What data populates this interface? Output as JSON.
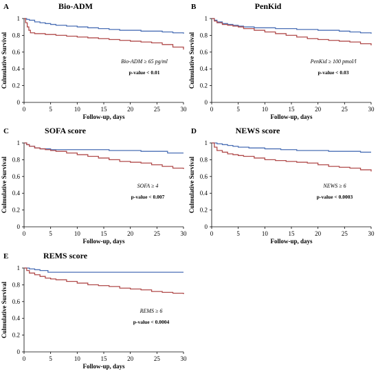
{
  "figure": {
    "panels": [
      {
        "letter": "A",
        "chart_data": {
          "type": "line",
          "title": "Bio-ADM",
          "xlabel": "Follow-up, days",
          "ylabel": "Culmulative Survival",
          "xlim": [
            0,
            30
          ],
          "ylim": [
            0,
            1
          ],
          "xticks": [
            "0",
            "5",
            "10",
            "15",
            "20",
            "25",
            "30"
          ],
          "yticks": [
            "0",
            "0.2",
            "0.4",
            "0.6",
            "0.8",
            "1"
          ],
          "annotation_cutoff": "Bio-ADM ≥ 65 pg/ml",
          "annotation_p": "p-value < 0.01",
          "series": [
            {
              "color": "#4a6fb5",
              "x": [
                0,
                0.5,
                1,
                2,
                3,
                4,
                5,
                6,
                8,
                10,
                12,
                14,
                16,
                18,
                20,
                22,
                24,
                26,
                28,
                30
              ],
              "y": [
                1,
                0.99,
                0.98,
                0.96,
                0.95,
                0.94,
                0.93,
                0.92,
                0.91,
                0.9,
                0.89,
                0.88,
                0.87,
                0.86,
                0.86,
                0.85,
                0.85,
                0.84,
                0.83,
                0.82
              ]
            },
            {
              "color": "#b04a4a",
              "x": [
                0,
                0.3,
                0.6,
                0.9,
                1.2,
                2,
                4,
                6,
                8,
                10,
                12,
                14,
                16,
                18,
                20,
                22,
                24,
                26,
                28,
                30
              ],
              "y": [
                1,
                0.95,
                0.9,
                0.86,
                0.83,
                0.82,
                0.81,
                0.8,
                0.79,
                0.78,
                0.77,
                0.76,
                0.75,
                0.74,
                0.73,
                0.72,
                0.71,
                0.69,
                0.66,
                0.63
              ]
            }
          ]
        }
      },
      {
        "letter": "B",
        "chart_data": {
          "type": "line",
          "title": "PenKid",
          "xlabel": "Follow-up, days",
          "ylabel": "Culmulative Survival",
          "xlim": [
            0,
            30
          ],
          "ylim": [
            0,
            1
          ],
          "xticks": [
            "0",
            "5",
            "10",
            "15",
            "20",
            "25",
            "30"
          ],
          "yticks": [
            "0",
            "0.2",
            "0.4",
            "0.6",
            "0.8",
            "1"
          ],
          "annotation_cutoff": "PenKid ≥ 100 pmol/l",
          "annotation_p": "p-value < 0.03",
          "series": [
            {
              "color": "#4a6fb5",
              "x": [
                0,
                0.5,
                1,
                2,
                3,
                4,
                5,
                6,
                8,
                10,
                12,
                14,
                16,
                18,
                20,
                22,
                24,
                26,
                28,
                30
              ],
              "y": [
                1,
                0.98,
                0.96,
                0.94,
                0.93,
                0.92,
                0.91,
                0.9,
                0.89,
                0.89,
                0.88,
                0.88,
                0.87,
                0.87,
                0.86,
                0.86,
                0.85,
                0.84,
                0.83,
                0.82
              ]
            },
            {
              "color": "#b04a4a",
              "x": [
                0,
                0.5,
                1,
                2,
                3,
                4,
                5,
                6,
                8,
                10,
                12,
                14,
                16,
                18,
                20,
                22,
                24,
                26,
                28,
                30
              ],
              "y": [
                1,
                0.97,
                0.95,
                0.93,
                0.92,
                0.91,
                0.9,
                0.88,
                0.86,
                0.84,
                0.82,
                0.8,
                0.78,
                0.76,
                0.75,
                0.74,
                0.73,
                0.72,
                0.7,
                0.68
              ]
            }
          ]
        }
      },
      {
        "letter": "C",
        "chart_data": {
          "type": "line",
          "title": "SOFA score",
          "xlabel": "Follow-up, days",
          "ylabel": "Culmulative Survival",
          "xlim": [
            0,
            30
          ],
          "ylim": [
            0,
            1
          ],
          "xticks": [
            "0",
            "5",
            "10",
            "15",
            "20",
            "25",
            "30"
          ],
          "yticks": [
            "0",
            "0.2",
            "0.4",
            "0.6",
            "0.8",
            "1"
          ],
          "annotation_cutoff": "SOFA ≥ 4",
          "annotation_p": "p-value < 0.007",
          "series": [
            {
              "color": "#4a6fb5",
              "x": [
                0,
                0.5,
                1,
                2,
                3,
                4,
                5,
                7,
                10,
                13,
                16,
                19,
                22,
                25,
                27,
                30
              ],
              "y": [
                1,
                0.98,
                0.96,
                0.94,
                0.93,
                0.93,
                0.92,
                0.92,
                0.92,
                0.92,
                0.91,
                0.91,
                0.9,
                0.9,
                0.88,
                0.88
              ]
            },
            {
              "color": "#b04a4a",
              "x": [
                0,
                0.5,
                1,
                2,
                3,
                4,
                5,
                6,
                8,
                10,
                12,
                14,
                16,
                18,
                20,
                22,
                24,
                26,
                28,
                30
              ],
              "y": [
                1,
                0.98,
                0.96,
                0.94,
                0.93,
                0.92,
                0.91,
                0.9,
                0.88,
                0.86,
                0.84,
                0.82,
                0.8,
                0.78,
                0.77,
                0.76,
                0.74,
                0.72,
                0.7,
                0.69
              ]
            }
          ]
        }
      },
      {
        "letter": "D",
        "chart_data": {
          "type": "line",
          "title": "NEWS score",
          "xlabel": "Follow-up, days",
          "ylabel": "Culmulative Survival",
          "xlim": [
            0,
            30
          ],
          "ylim": [
            0,
            1
          ],
          "xticks": [
            "0",
            "5",
            "10",
            "15",
            "20",
            "25",
            "30"
          ],
          "yticks": [
            "0",
            "0.2",
            "0.4",
            "0.6",
            "0.8",
            "1"
          ],
          "annotation_cutoff": "NEWS ≥ 6",
          "annotation_p": "p-value < 0.0003",
          "series": [
            {
              "color": "#4a6fb5",
              "x": [
                0,
                1,
                2,
                3,
                4,
                5,
                7,
                10,
                13,
                16,
                19,
                22,
                25,
                28,
                30
              ],
              "y": [
                1,
                0.99,
                0.98,
                0.97,
                0.96,
                0.95,
                0.94,
                0.93,
                0.92,
                0.91,
                0.91,
                0.9,
                0.9,
                0.89,
                0.89
              ]
            },
            {
              "color": "#b04a4a",
              "x": [
                0,
                0.5,
                1,
                2,
                3,
                4,
                5,
                6,
                8,
                10,
                12,
                14,
                16,
                18,
                20,
                22,
                24,
                26,
                28,
                30
              ],
              "y": [
                1,
                0.95,
                0.91,
                0.89,
                0.87,
                0.86,
                0.85,
                0.84,
                0.82,
                0.8,
                0.79,
                0.78,
                0.77,
                0.76,
                0.74,
                0.72,
                0.71,
                0.7,
                0.68,
                0.66
              ]
            }
          ]
        }
      },
      {
        "letter": "E",
        "chart_data": {
          "type": "line",
          "title": "REMS score",
          "xlabel": "Follow-up, days",
          "ylabel": "Culmulative Survival",
          "xlim": [
            0,
            30
          ],
          "ylim": [
            0,
            1
          ],
          "xticks": [
            "0",
            "5",
            "10",
            "15",
            "20",
            "25",
            "30"
          ],
          "yticks": [
            "0",
            "0.2",
            "0.4",
            "0.6",
            "0.8",
            "1"
          ],
          "annotation_cutoff": "REMS ≥ 6",
          "annotation_p": "p-value < 0.0004",
          "series": [
            {
              "color": "#4a6fb5",
              "x": [
                0,
                0.5,
                1,
                2,
                3,
                4,
                4.5,
                8,
                12,
                16,
                20,
                24,
                28,
                30
              ],
              "y": [
                1,
                1,
                0.99,
                0.98,
                0.97,
                0.97,
                0.95,
                0.95,
                0.95,
                0.95,
                0.95,
                0.95,
                0.95,
                0.95
              ]
            },
            {
              "color": "#b04a4a",
              "x": [
                0,
                0.5,
                1,
                2,
                3,
                4,
                5,
                6,
                8,
                10,
                12,
                14,
                16,
                18,
                20,
                22,
                24,
                26,
                28,
                30
              ],
              "y": [
                1,
                0.97,
                0.94,
                0.92,
                0.9,
                0.88,
                0.87,
                0.86,
                0.84,
                0.82,
                0.8,
                0.79,
                0.78,
                0.76,
                0.75,
                0.74,
                0.72,
                0.71,
                0.7,
                0.69
              ]
            }
          ]
        }
      }
    ]
  }
}
